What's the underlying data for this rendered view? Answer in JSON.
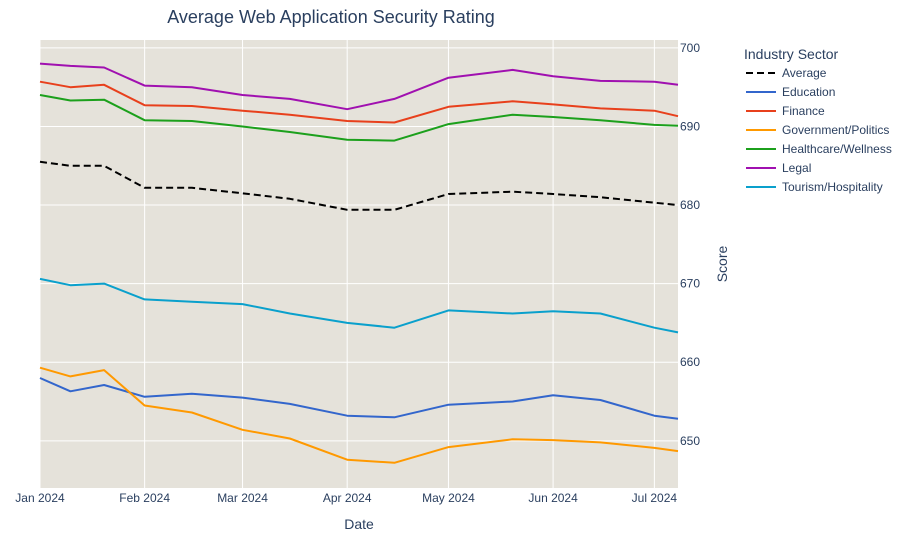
{
  "chart_data": {
    "type": "line",
    "title": "Average Web Application Security Rating",
    "xlabel": "Date",
    "ylabel": "Score",
    "xlim": [
      "2024-01-01",
      "2024-07-08"
    ],
    "ylim": [
      644,
      701
    ],
    "x_ticks": [
      {
        "date": "2024-01-01",
        "label": "Jan 2024"
      },
      {
        "date": "2024-02-01",
        "label": "Feb 2024"
      },
      {
        "date": "2024-03-01",
        "label": "Mar 2024"
      },
      {
        "date": "2024-04-01",
        "label": "Apr 2024"
      },
      {
        "date": "2024-05-01",
        "label": "May 2024"
      },
      {
        "date": "2024-06-01",
        "label": "Jun 2024"
      },
      {
        "date": "2024-07-01",
        "label": "Jul 2024"
      }
    ],
    "y_ticks": [
      650,
      660,
      670,
      680,
      690,
      700
    ],
    "y_axis_side": "right",
    "grid": true,
    "background": "#e5e2da",
    "legend": {
      "title": "Industry Sector",
      "placement": "right"
    },
    "x": [
      "2024-01-01",
      "2024-01-10",
      "2024-01-20",
      "2024-02-01",
      "2024-02-15",
      "2024-03-01",
      "2024-03-15",
      "2024-04-01",
      "2024-04-15",
      "2024-05-01",
      "2024-05-20",
      "2024-06-01",
      "2024-06-15",
      "2024-07-01",
      "2024-07-08"
    ],
    "series": [
      {
        "name": "Average",
        "color": "#000000",
        "dash": true,
        "values": [
          685.5,
          685.0,
          685.0,
          682.2,
          682.2,
          681.5,
          680.8,
          679.4,
          679.4,
          681.4,
          681.7,
          681.4,
          681.0,
          680.3,
          680.0
        ]
      },
      {
        "name": "Education",
        "color": "#3366cc",
        "values": [
          658.0,
          656.3,
          657.1,
          655.6,
          656.0,
          655.5,
          654.7,
          653.2,
          653.0,
          654.6,
          655.0,
          655.8,
          655.2,
          653.2,
          652.8
        ]
      },
      {
        "name": "Finance",
        "color": "#e8401c",
        "values": [
          695.7,
          695.0,
          695.3,
          692.7,
          692.6,
          692.0,
          691.5,
          690.7,
          690.5,
          692.5,
          693.2,
          692.8,
          692.3,
          692.0,
          691.3
        ]
      },
      {
        "name": "Government/Politics",
        "color": "#ff9900",
        "values": [
          659.3,
          658.2,
          659.0,
          654.5,
          653.6,
          651.4,
          650.3,
          647.6,
          647.2,
          649.2,
          650.2,
          650.1,
          649.8,
          649.1,
          648.7
        ]
      },
      {
        "name": "Healthcare/Wellness",
        "color": "#1ca01c",
        "values": [
          694.0,
          693.3,
          693.4,
          690.8,
          690.7,
          690.0,
          689.3,
          688.3,
          688.2,
          690.3,
          691.5,
          691.2,
          690.8,
          690.2,
          690.1
        ]
      },
      {
        "name": "Legal",
        "color": "#a010b0",
        "values": [
          698.0,
          697.7,
          697.5,
          695.2,
          695.0,
          694.0,
          693.5,
          692.2,
          693.5,
          696.2,
          697.2,
          696.4,
          695.8,
          695.7,
          695.3
        ]
      },
      {
        "name": "Tourism/Hospitality",
        "color": "#0aa0cc",
        "values": [
          670.6,
          669.8,
          670.0,
          668.0,
          667.7,
          667.4,
          666.2,
          665.0,
          664.4,
          666.6,
          666.2,
          666.5,
          666.2,
          664.4,
          663.8
        ]
      }
    ]
  }
}
